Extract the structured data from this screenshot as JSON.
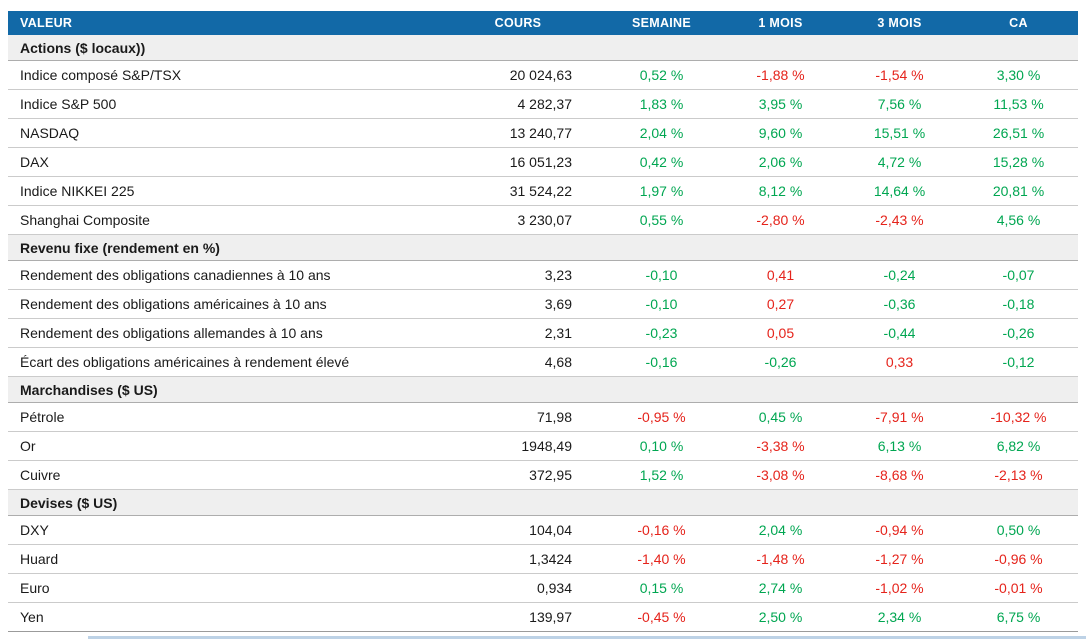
{
  "colors": {
    "header_bg": "#1269A7",
    "positive_green": "#00A651",
    "negative_red": "#E5231B",
    "section_bg": "#EFEFEF",
    "row_border": "#CBCBCB",
    "header_text": "#FFFFFF",
    "body_text": "#1A1A1A"
  },
  "chart_data": {
    "type": "table",
    "columns": [
      "VALEUR",
      "COURS",
      "SEMAINE",
      "1 MOIS",
      "3 MOIS",
      "CA"
    ],
    "sections": [
      {
        "title": "Actions ($ locaux))",
        "rows": [
          {
            "label": "Indice composé S&P/TSX",
            "cours": "20 024,63",
            "changes": [
              {
                "v": "0,52 %",
                "color": "green"
              },
              {
                "v": "-1,88 %",
                "color": "red"
              },
              {
                "v": "-1,54 %",
                "color": "red"
              },
              {
                "v": "3,30 %",
                "color": "green"
              }
            ]
          },
          {
            "label": "Indice S&P 500",
            "cours": "4 282,37",
            "changes": [
              {
                "v": "1,83 %",
                "color": "green"
              },
              {
                "v": "3,95 %",
                "color": "green"
              },
              {
                "v": "7,56 %",
                "color": "green"
              },
              {
                "v": "11,53 %",
                "color": "green"
              }
            ]
          },
          {
            "label": "NASDAQ",
            "cours": "13 240,77",
            "changes": [
              {
                "v": "2,04 %",
                "color": "green"
              },
              {
                "v": "9,60 %",
                "color": "green"
              },
              {
                "v": "15,51 %",
                "color": "green"
              },
              {
                "v": "26,51 %",
                "color": "green"
              }
            ]
          },
          {
            "label": "DAX",
            "cours": "16 051,23",
            "changes": [
              {
                "v": "0,42 %",
                "color": "green"
              },
              {
                "v": "2,06 %",
                "color": "green"
              },
              {
                "v": "4,72 %",
                "color": "green"
              },
              {
                "v": "15,28 %",
                "color": "green"
              }
            ]
          },
          {
            "label": "Indice NIKKEI 225",
            "cours": "31 524,22",
            "changes": [
              {
                "v": "1,97 %",
                "color": "green"
              },
              {
                "v": "8,12 %",
                "color": "green"
              },
              {
                "v": "14,64 %",
                "color": "green"
              },
              {
                "v": "20,81 %",
                "color": "green"
              }
            ]
          },
          {
            "label": "Shanghai Composite",
            "cours": "3 230,07",
            "changes": [
              {
                "v": "0,55 %",
                "color": "green"
              },
              {
                "v": "-2,80 %",
                "color": "red"
              },
              {
                "v": "-2,43 %",
                "color": "red"
              },
              {
                "v": "4,56 %",
                "color": "green"
              }
            ]
          }
        ]
      },
      {
        "title": "Revenu fixe (rendement en %)",
        "rows": [
          {
            "label": "Rendement des obligations canadiennes à 10 ans",
            "cours": "3,23",
            "changes": [
              {
                "v": "-0,10",
                "color": "green"
              },
              {
                "v": "0,41",
                "color": "red"
              },
              {
                "v": "-0,24",
                "color": "green"
              },
              {
                "v": "-0,07",
                "color": "green"
              }
            ]
          },
          {
            "label": "Rendement des obligations américaines à 10 ans",
            "cours": "3,69",
            "changes": [
              {
                "v": "-0,10",
                "color": "green"
              },
              {
                "v": "0,27",
                "color": "red"
              },
              {
                "v": "-0,36",
                "color": "green"
              },
              {
                "v": "-0,18",
                "color": "green"
              }
            ]
          },
          {
            "label": "Rendement des obligations allemandes à 10 ans",
            "cours": "2,31",
            "changes": [
              {
                "v": "-0,23",
                "color": "green"
              },
              {
                "v": "0,05",
                "color": "red"
              },
              {
                "v": "-0,44",
                "color": "green"
              },
              {
                "v": "-0,26",
                "color": "green"
              }
            ]
          },
          {
            "label": "Écart des obligations américaines à rendement élevé",
            "cours": "4,68",
            "changes": [
              {
                "v": "-0,16",
                "color": "green"
              },
              {
                "v": "-0,26",
                "color": "green"
              },
              {
                "v": "0,33",
                "color": "red"
              },
              {
                "v": "-0,12",
                "color": "green"
              }
            ]
          }
        ]
      },
      {
        "title": "Marchandises ($ US)",
        "rows": [
          {
            "label": "Pétrole",
            "cours": "71,98",
            "changes": [
              {
                "v": "-0,95 %",
                "color": "red"
              },
              {
                "v": "0,45 %",
                "color": "green"
              },
              {
                "v": "-7,91 %",
                "color": "red"
              },
              {
                "v": "-10,32 %",
                "color": "red"
              }
            ]
          },
          {
            "label": "Or",
            "cours": "1948,49",
            "changes": [
              {
                "v": "0,10 %",
                "color": "green"
              },
              {
                "v": "-3,38 %",
                "color": "red"
              },
              {
                "v": "6,13 %",
                "color": "green"
              },
              {
                "v": "6,82 %",
                "color": "green"
              }
            ]
          },
          {
            "label": "Cuivre",
            "cours": "372,95",
            "changes": [
              {
                "v": "1,52 %",
                "color": "green"
              },
              {
                "v": "-3,08 %",
                "color": "red"
              },
              {
                "v": "-8,68 %",
                "color": "red"
              },
              {
                "v": "-2,13 %",
                "color": "red"
              }
            ]
          }
        ]
      },
      {
        "title": "Devises ($ US)",
        "rows": [
          {
            "label": "DXY",
            "cours": "104,04",
            "changes": [
              {
                "v": "-0,16 %",
                "color": "red"
              },
              {
                "v": "2,04 %",
                "color": "green"
              },
              {
                "v": "-0,94 %",
                "color": "red"
              },
              {
                "v": "0,50 %",
                "color": "green"
              }
            ]
          },
          {
            "label": "Huard",
            "cours": "1,3424",
            "changes": [
              {
                "v": "-1,40 %",
                "color": "red"
              },
              {
                "v": "-1,48 %",
                "color": "red"
              },
              {
                "v": "-1,27 %",
                "color": "red"
              },
              {
                "v": "-0,96 %",
                "color": "red"
              }
            ]
          },
          {
            "label": "Euro",
            "cours": "0,934",
            "changes": [
              {
                "v": "0,15 %",
                "color": "green"
              },
              {
                "v": "2,74 %",
                "color": "green"
              },
              {
                "v": "-1,02 %",
                "color": "red"
              },
              {
                "v": "-0,01 %",
                "color": "red"
              }
            ]
          },
          {
            "label": "Yen",
            "cours": "139,97",
            "changes": [
              {
                "v": "-0,45 %",
                "color": "red"
              },
              {
                "v": "2,50 %",
                "color": "green"
              },
              {
                "v": "2,34 %",
                "color": "green"
              },
              {
                "v": "6,75 %",
                "color": "green"
              }
            ]
          }
        ]
      }
    ]
  }
}
